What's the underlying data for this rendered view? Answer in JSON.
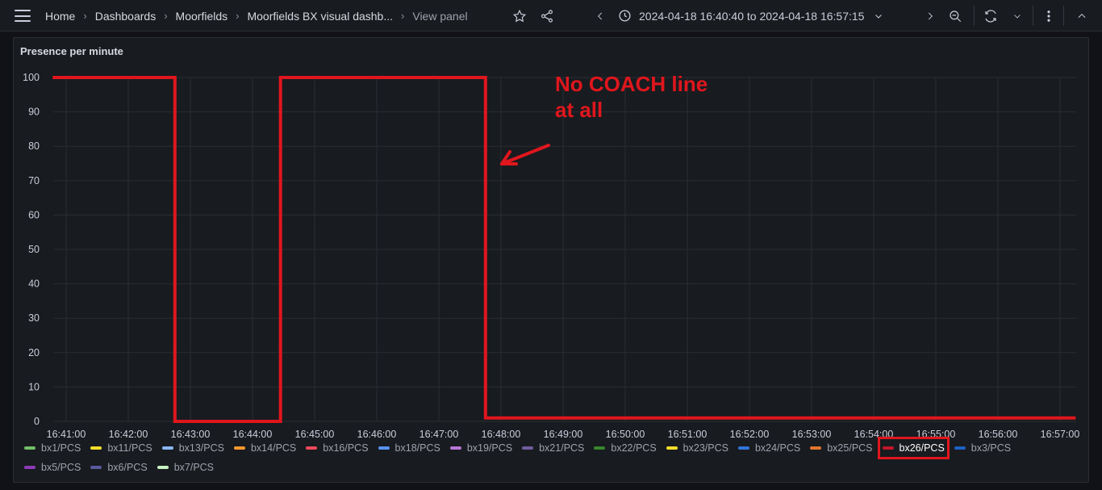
{
  "topbar": {
    "breadcrumbs": [
      "Home",
      "Dashboards",
      "Moorfields",
      "Moorfields BX visual dashb...",
      "View panel"
    ],
    "time_range": "2024-04-18 16:40:40 to 2024-04-18 16:57:15"
  },
  "panel": {
    "title": "Presence per minute",
    "annotation": [
      "No COACH line",
      "at all"
    ]
  },
  "chart_data": {
    "type": "line",
    "title": "Presence per minute",
    "xlabel": "",
    "ylabel": "",
    "ylim": [
      0,
      100
    ],
    "y_ticks": [
      "0",
      "10",
      "20",
      "30",
      "40",
      "50",
      "60",
      "70",
      "80",
      "90",
      "100"
    ],
    "x_ticks": [
      "16:41:00",
      "16:42:00",
      "16:43:00",
      "16:44:00",
      "16:45:00",
      "16:46:00",
      "16:47:00",
      "16:48:00",
      "16:49:00",
      "16:50:00",
      "16:51:00",
      "16:52:00",
      "16:53:00",
      "16:54:00",
      "16:55:00",
      "16:56:00",
      "16:57:00"
    ],
    "grid": true,
    "legend_position": "bottom",
    "highlighted_series": "bx26/PCS",
    "series": [
      {
        "name": "bx26/PCS",
        "color": "#e0161d",
        "points": [
          [
            "16:40:47",
            100
          ],
          [
            "16:42:45",
            100
          ],
          [
            "16:42:45",
            0
          ],
          [
            "16:44:27",
            0
          ],
          [
            "16:44:27",
            100
          ],
          [
            "16:47:45",
            100
          ],
          [
            "16:47:45",
            1
          ],
          [
            "16:57:15",
            1
          ]
        ]
      }
    ],
    "legend": [
      {
        "name": "bx1/PCS",
        "color": "#73bf69"
      },
      {
        "name": "bx11/PCS",
        "color": "#fade2a"
      },
      {
        "name": "bx13/PCS",
        "color": "#8ab8ff"
      },
      {
        "name": "bx14/PCS",
        "color": "#ff9830"
      },
      {
        "name": "bx16/PCS",
        "color": "#f2495c"
      },
      {
        "name": "bx18/PCS",
        "color": "#5794f2"
      },
      {
        "name": "bx19/PCS",
        "color": "#b877d9"
      },
      {
        "name": "bx21/PCS",
        "color": "#705da0"
      },
      {
        "name": "bx22/PCS",
        "color": "#37872d"
      },
      {
        "name": "bx23/PCS",
        "color": "#fade2a"
      },
      {
        "name": "bx24/PCS",
        "color": "#3274d9"
      },
      {
        "name": "bx25/PCS",
        "color": "#e0752d"
      },
      {
        "name": "bx26/PCS",
        "color": "#c4162a"
      },
      {
        "name": "bx3/PCS",
        "color": "#1f60c4"
      },
      {
        "name": "bx5/PCS",
        "color": "#8f3bb8"
      },
      {
        "name": "bx6/PCS",
        "color": "#5a5a9e"
      },
      {
        "name": "bx7/PCS",
        "color": "#c8f2c2"
      }
    ]
  }
}
